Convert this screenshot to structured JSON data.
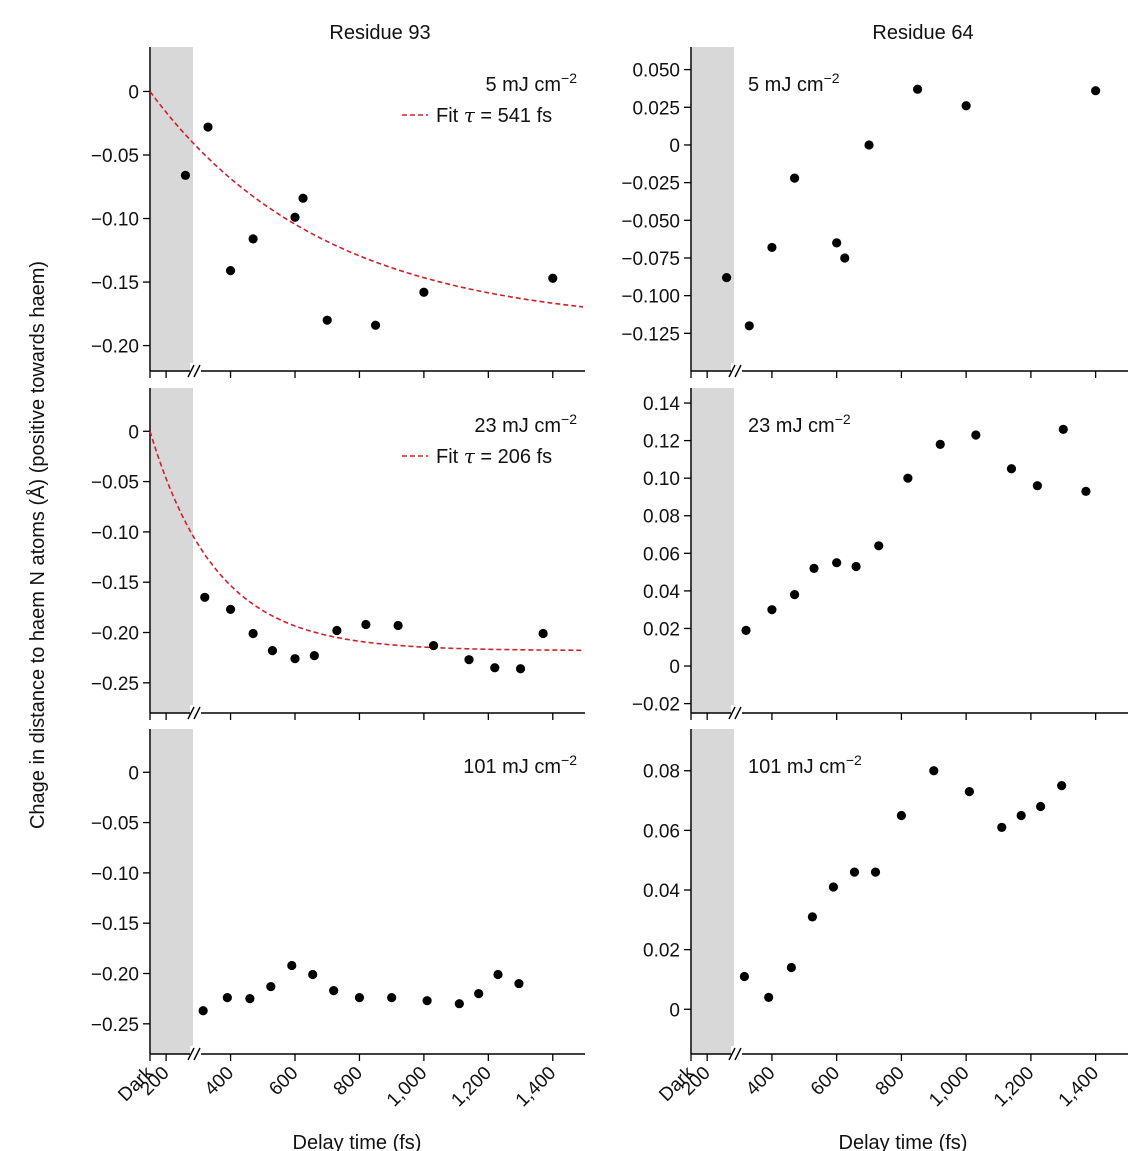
{
  "figure": {
    "ylabel": "Chage in distance to haem N atoms (Å) (positive towards haem)",
    "xlabel": "Delay time (fs)",
    "x_ticks": [
      "Dark",
      "200",
      "400",
      "600",
      "800",
      "1,000",
      "1,200",
      "1,400"
    ],
    "colors": {
      "points": "#000000",
      "fit": "#d0202a",
      "dark_band": "#d8d8d8",
      "axis": "#000000"
    }
  },
  "chart_data": [
    {
      "type": "scatter",
      "id": "r93-5",
      "column_title": "Residue 93",
      "annotation": "5 mJ cm",
      "annotation_sup": "−2",
      "legend": {
        "text": "Fit",
        "tau_symbol": "τ",
        "value": " = 541 fs"
      },
      "fit": {
        "tau": 541,
        "amplitude": -0.185
      },
      "xlim": [
        150,
        1500
      ],
      "ylim": [
        -0.22,
        0.035
      ],
      "yticks": [
        0,
        -0.05,
        -0.1,
        -0.15,
        -0.2
      ],
      "ytick_labels": [
        "0",
        "−0.05",
        "−0.10",
        "−0.15",
        "−0.20"
      ],
      "x": [
        260,
        330,
        400,
        470,
        600,
        625,
        700,
        850,
        1000,
        1400
      ],
      "y": [
        -0.066,
        -0.028,
        -0.141,
        -0.116,
        -0.099,
        -0.084,
        -0.18,
        -0.184,
        -0.158,
        -0.147
      ]
    },
    {
      "type": "scatter",
      "id": "r64-5",
      "column_title": "Residue 64",
      "annotation": "5 mJ cm",
      "annotation_sup": "−2",
      "xlim": [
        150,
        1500
      ],
      "ylim": [
        -0.15,
        0.065
      ],
      "yticks": [
        0.05,
        0.025,
        0,
        -0.025,
        -0.05,
        -0.075,
        -0.1,
        -0.125
      ],
      "ytick_labels": [
        "0.050",
        "0.025",
        "0",
        "−0.025",
        "−0.050",
        "−0.075",
        "−0.100",
        "−0.125"
      ],
      "x": [
        260,
        330,
        400,
        470,
        600,
        625,
        700,
        850,
        1000,
        1400
      ],
      "y": [
        -0.088,
        -0.12,
        -0.068,
        -0.022,
        -0.065,
        -0.075,
        0.0,
        0.037,
        0.026,
        0.036
      ]
    },
    {
      "type": "scatter",
      "id": "r93-23",
      "annotation": "23 mJ cm",
      "annotation_sup": "−2",
      "legend": {
        "text": "Fit",
        "tau_symbol": "τ",
        "value": " = 206 fs"
      },
      "fit": {
        "tau": 206,
        "amplitude": -0.218
      },
      "xlim": [
        150,
        1500
      ],
      "ylim": [
        -0.28,
        0.043
      ],
      "yticks": [
        0,
        -0.05,
        -0.1,
        -0.15,
        -0.2,
        -0.25
      ],
      "ytick_labels": [
        "0",
        "−0.05",
        "−0.10",
        "−0.15",
        "−0.20",
        "−0.25"
      ],
      "x": [
        320,
        400,
        470,
        530,
        600,
        660,
        730,
        820,
        920,
        1030,
        1140,
        1220,
        1300,
        1370
      ],
      "y": [
        -0.165,
        -0.177,
        -0.201,
        -0.218,
        -0.226,
        -0.223,
        -0.198,
        -0.192,
        -0.193,
        -0.213,
        -0.227,
        -0.235,
        -0.236,
        -0.201
      ]
    },
    {
      "type": "scatter",
      "id": "r64-23",
      "annotation": "23 mJ cm",
      "annotation_sup": "−2",
      "xlim": [
        150,
        1500
      ],
      "ylim": [
        -0.025,
        0.148
      ],
      "yticks": [
        0.14,
        0.12,
        0.1,
        0.08,
        0.06,
        0.04,
        0.02,
        0,
        -0.02
      ],
      "ytick_labels": [
        "0.14",
        "0.12",
        "0.10",
        "0.08",
        "0.06",
        "0.04",
        "0.02",
        "0",
        "−0.02"
      ],
      "x": [
        320,
        400,
        470,
        530,
        600,
        660,
        730,
        820,
        920,
        1030,
        1140,
        1220,
        1300,
        1370
      ],
      "y": [
        0.019,
        0.03,
        0.038,
        0.052,
        0.055,
        0.053,
        0.064,
        0.1,
        0.118,
        0.123,
        0.105,
        0.096,
        0.126,
        0.093
      ]
    },
    {
      "type": "scatter",
      "id": "r93-101",
      "annotation": "101 mJ cm",
      "annotation_sup": "−2",
      "xlim": [
        150,
        1500
      ],
      "ylim": [
        -0.28,
        0.043
      ],
      "yticks": [
        0,
        -0.05,
        -0.1,
        -0.15,
        -0.2,
        -0.25
      ],
      "ytick_labels": [
        "0",
        "−0.05",
        "−0.10",
        "−0.15",
        "−0.20",
        "−0.25"
      ],
      "x": [
        315,
        390,
        460,
        525,
        590,
        655,
        720,
        800,
        900,
        1010,
        1110,
        1170,
        1230,
        1295
      ],
      "y": [
        -0.237,
        -0.224,
        -0.225,
        -0.213,
        -0.192,
        -0.201,
        -0.217,
        -0.224,
        -0.224,
        -0.227,
        -0.23,
        -0.22,
        -0.201,
        -0.21
      ]
    },
    {
      "type": "scatter",
      "id": "r64-101",
      "annotation": "101 mJ cm",
      "annotation_sup": "−2",
      "xlim": [
        150,
        1500
      ],
      "ylim": [
        -0.015,
        0.094
      ],
      "yticks": [
        0.08,
        0.06,
        0.04,
        0.02,
        0
      ],
      "ytick_labels": [
        "0.08",
        "0.06",
        "0.04",
        "0.02",
        "0"
      ],
      "x": [
        315,
        390,
        460,
        525,
        590,
        655,
        720,
        800,
        900,
        1010,
        1110,
        1170,
        1230,
        1295
      ],
      "y": [
        0.011,
        0.004,
        0.014,
        0.031,
        0.041,
        0.046,
        0.046,
        0.065,
        0.08,
        0.073,
        0.061,
        0.065,
        0.068,
        0.075
      ]
    }
  ]
}
